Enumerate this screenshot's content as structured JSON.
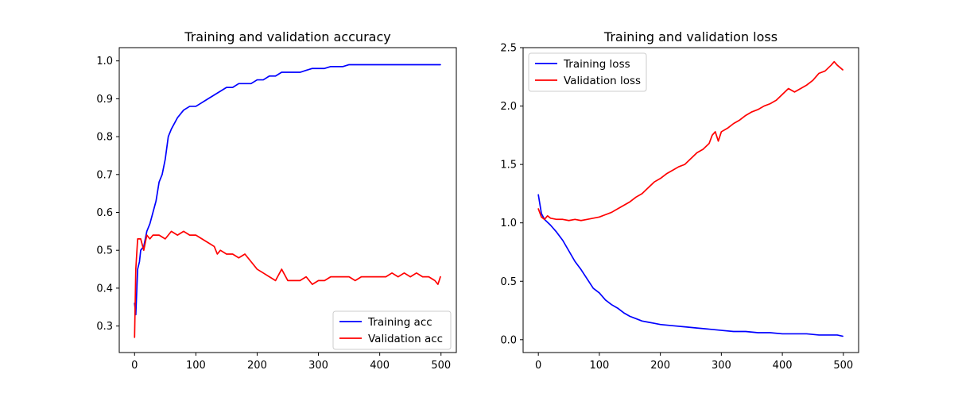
{
  "chart_data": [
    {
      "type": "line",
      "title": "Training and validation accuracy",
      "xlabel": "",
      "ylabel": "",
      "xlim": [
        -25,
        525
      ],
      "ylim": [
        0.23,
        1.035
      ],
      "xticks": [
        0,
        100,
        200,
        300,
        400,
        500
      ],
      "xtick_labels": [
        "0",
        "100",
        "200",
        "300",
        "400",
        "500"
      ],
      "yticks": [
        0.3,
        0.4,
        0.5,
        0.6,
        0.7,
        0.8,
        0.9,
        1.0
      ],
      "ytick_labels": [
        "0.3",
        "0.4",
        "0.5",
        "0.6",
        "0.7",
        "0.8",
        "0.9",
        "1.0"
      ],
      "grid": false,
      "legend_position": "lower-right",
      "series": [
        {
          "name": "Training acc",
          "color": "#0000ff",
          "x": [
            0,
            2,
            5,
            8,
            10,
            15,
            20,
            25,
            30,
            35,
            40,
            45,
            50,
            55,
            60,
            70,
            80,
            90,
            100,
            110,
            120,
            130,
            140,
            150,
            160,
            170,
            180,
            190,
            200,
            210,
            220,
            230,
            240,
            250,
            260,
            270,
            280,
            290,
            300,
            310,
            320,
            330,
            340,
            350,
            360,
            370,
            380,
            390,
            400,
            410,
            420,
            430,
            440,
            450,
            460,
            470,
            480,
            490,
            495,
            499
          ],
          "y": [
            0.36,
            0.33,
            0.45,
            0.47,
            0.5,
            0.51,
            0.55,
            0.57,
            0.6,
            0.63,
            0.68,
            0.7,
            0.74,
            0.8,
            0.82,
            0.85,
            0.87,
            0.88,
            0.88,
            0.89,
            0.9,
            0.91,
            0.92,
            0.93,
            0.93,
            0.94,
            0.94,
            0.94,
            0.95,
            0.95,
            0.96,
            0.96,
            0.97,
            0.97,
            0.97,
            0.97,
            0.975,
            0.98,
            0.98,
            0.98,
            0.985,
            0.985,
            0.985,
            0.99,
            0.99,
            0.99,
            0.99,
            0.99,
            0.99,
            0.99,
            0.99,
            0.99,
            0.99,
            0.99,
            0.99,
            0.99,
            0.99,
            0.99,
            0.99,
            0.99
          ]
        },
        {
          "name": "Validation acc",
          "color": "#ff0000",
          "x": [
            0,
            2,
            5,
            8,
            10,
            15,
            20,
            25,
            30,
            40,
            50,
            60,
            70,
            80,
            90,
            100,
            110,
            120,
            130,
            135,
            140,
            150,
            160,
            170,
            180,
            190,
            200,
            210,
            220,
            230,
            240,
            250,
            260,
            270,
            280,
            290,
            300,
            310,
            320,
            330,
            340,
            350,
            360,
            370,
            380,
            390,
            400,
            410,
            420,
            430,
            440,
            450,
            460,
            470,
            480,
            490,
            495,
            499
          ],
          "y": [
            0.27,
            0.45,
            0.53,
            0.53,
            0.53,
            0.5,
            0.54,
            0.53,
            0.54,
            0.54,
            0.53,
            0.55,
            0.54,
            0.55,
            0.54,
            0.54,
            0.53,
            0.52,
            0.51,
            0.49,
            0.5,
            0.49,
            0.49,
            0.48,
            0.49,
            0.47,
            0.45,
            0.44,
            0.43,
            0.42,
            0.45,
            0.42,
            0.42,
            0.42,
            0.43,
            0.41,
            0.42,
            0.42,
            0.43,
            0.43,
            0.43,
            0.43,
            0.42,
            0.43,
            0.43,
            0.43,
            0.43,
            0.43,
            0.44,
            0.43,
            0.44,
            0.43,
            0.44,
            0.43,
            0.43,
            0.42,
            0.41,
            0.43
          ]
        }
      ]
    },
    {
      "type": "line",
      "title": "Training and validation loss",
      "xlabel": "",
      "ylabel": "",
      "xlim": [
        -25,
        525
      ],
      "ylim": [
        -0.11,
        2.5
      ],
      "xticks": [
        0,
        100,
        200,
        300,
        400,
        500
      ],
      "xtick_labels": [
        "0",
        "100",
        "200",
        "300",
        "400",
        "500"
      ],
      "yticks": [
        0.0,
        0.5,
        1.0,
        1.5,
        2.0,
        2.5
      ],
      "ytick_labels": [
        "0.0",
        "0.5",
        "1.0",
        "1.5",
        "2.0",
        "2.5"
      ],
      "grid": false,
      "legend_position": "upper-left",
      "series": [
        {
          "name": "Training loss",
          "color": "#0000ff",
          "x": [
            0,
            5,
            10,
            20,
            30,
            40,
            50,
            60,
            70,
            80,
            90,
            100,
            110,
            120,
            130,
            140,
            150,
            160,
            170,
            180,
            190,
            200,
            220,
            240,
            260,
            280,
            300,
            320,
            340,
            360,
            380,
            400,
            420,
            440,
            460,
            480,
            490,
            499
          ],
          "y": [
            1.24,
            1.08,
            1.03,
            0.98,
            0.92,
            0.85,
            0.76,
            0.67,
            0.6,
            0.52,
            0.44,
            0.4,
            0.34,
            0.3,
            0.27,
            0.23,
            0.2,
            0.18,
            0.16,
            0.15,
            0.14,
            0.13,
            0.12,
            0.11,
            0.1,
            0.09,
            0.08,
            0.07,
            0.07,
            0.06,
            0.06,
            0.05,
            0.05,
            0.05,
            0.04,
            0.04,
            0.04,
            0.03
          ]
        },
        {
          "name": "Validation loss",
          "color": "#ff0000",
          "x": [
            0,
            5,
            10,
            15,
            20,
            30,
            40,
            50,
            60,
            70,
            80,
            90,
            100,
            110,
            120,
            130,
            140,
            150,
            160,
            170,
            180,
            190,
            200,
            210,
            220,
            230,
            240,
            250,
            260,
            270,
            280,
            285,
            290,
            295,
            300,
            310,
            320,
            330,
            340,
            350,
            360,
            370,
            380,
            390,
            400,
            410,
            420,
            430,
            440,
            450,
            460,
            470,
            480,
            485,
            490,
            499
          ],
          "y": [
            1.12,
            1.05,
            1.03,
            1.06,
            1.04,
            1.03,
            1.03,
            1.02,
            1.03,
            1.02,
            1.03,
            1.04,
            1.05,
            1.07,
            1.09,
            1.12,
            1.15,
            1.18,
            1.22,
            1.25,
            1.3,
            1.35,
            1.38,
            1.42,
            1.45,
            1.48,
            1.5,
            1.55,
            1.6,
            1.63,
            1.68,
            1.75,
            1.78,
            1.7,
            1.78,
            1.81,
            1.85,
            1.88,
            1.92,
            1.95,
            1.97,
            2.0,
            2.02,
            2.05,
            2.1,
            2.15,
            2.12,
            2.15,
            2.18,
            2.22,
            2.28,
            2.3,
            2.35,
            2.38,
            2.35,
            2.31
          ]
        }
      ]
    }
  ]
}
